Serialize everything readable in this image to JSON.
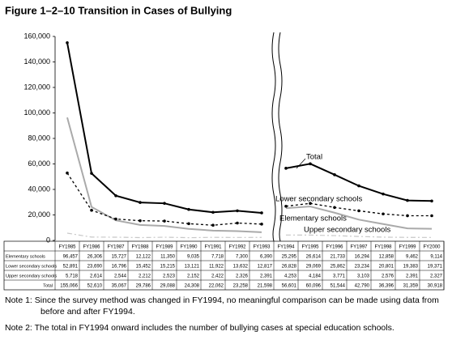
{
  "chart_data": {
    "type": "line",
    "title": "Figure 1–2–10  Transition in Cases of Bullying",
    "categories": [
      "FY1985",
      "FY1986",
      "FY1987",
      "FY1988",
      "FY1989",
      "FY1990",
      "FY1991",
      "FY1992",
      "FY1993",
      "FY1994",
      "FY1995",
      "FY1996",
      "FY1997",
      "FY1998",
      "FY1999",
      "FY2000"
    ],
    "ylim": [
      0,
      160000
    ],
    "yticks": [
      0,
      {
        "value": 20000,
        "label": "20,000"
      },
      {
        "value": 40000,
        "label": "40,000"
      },
      {
        "value": 60000,
        "label": "60,000"
      },
      {
        "value": 80000,
        "label": "80,000"
      },
      {
        "value": 100000,
        "label": "100,000"
      },
      {
        "value": 120000,
        "label": "120,000"
      },
      {
        "value": 140000,
        "label": "140,000"
      },
      {
        "value": 160000,
        "label": "160,000"
      }
    ],
    "series": [
      {
        "name": "Elementary schools",
        "color": "#aaaaaa",
        "values": [
          96457,
          26306,
          15727,
          12122,
          11350,
          9035,
          7718,
          7300,
          6390,
          25295,
          26614,
          21733,
          16294,
          12858,
          9462,
          9114
        ],
        "value_labels": [
          "96,457",
          "26,306",
          "15,727",
          "12,122",
          "11,350",
          "9,035",
          "7,718",
          "7,300",
          "6,390",
          "25,295",
          "26,614",
          "21,733",
          "16,294",
          "12,858",
          "9,462",
          "9,114"
        ]
      },
      {
        "name": "Lower secondary schools",
        "color": "#000000",
        "values": [
          52891,
          23690,
          16796,
          15452,
          15215,
          13121,
          11922,
          13632,
          12817,
          26828,
          29069,
          25862,
          23234,
          20801,
          19383,
          19371
        ],
        "value_labels": [
          "52,891",
          "23,690",
          "16,796",
          "15,452",
          "15,215",
          "13,121",
          "11,922",
          "13,632",
          "12,817",
          "26,828",
          "29,069",
          "25,862",
          "23,234",
          "20,801",
          "19,383",
          "19,371"
        ]
      },
      {
        "name": "Upper secondary schools",
        "color": "#c8c8c8",
        "values": [
          5718,
          2614,
          2544,
          2212,
          2523,
          2152,
          2422,
          2326,
          2391,
          4253,
          4184,
          3771,
          3103,
          2576,
          2391,
          2327
        ],
        "value_labels": [
          "5,718",
          "2,614",
          "2,544",
          "2,212",
          "2,523",
          "2,152",
          "2,422",
          "2,326",
          "2,391",
          "4,253",
          "4,184",
          "3,771",
          "3,103",
          "2,576",
          "2,391",
          "2,327"
        ]
      },
      {
        "name": "Total",
        "color": "#000000",
        "values": [
          155066,
          52610,
          35067,
          29786,
          29088,
          24308,
          22062,
          23258,
          21598,
          56601,
          60096,
          51544,
          42790,
          36396,
          31359,
          30918
        ],
        "value_labels": [
          "155,066",
          "52,610",
          "35,067",
          "29,786",
          "29,088",
          "24,308",
          "22,062",
          "23,258",
          "21,598",
          "56,601",
          "60,096",
          "51,544",
          "42,790",
          "36,396",
          "31,359",
          "30,918"
        ]
      }
    ]
  },
  "notes": [
    "Note 1: Since the survey method was changed in FY1994, no meaningful comparison can be made using data from before and after FY1994.",
    "Note 2: The total in FY1994 onward includes the number of bullying cases at special education schools."
  ]
}
